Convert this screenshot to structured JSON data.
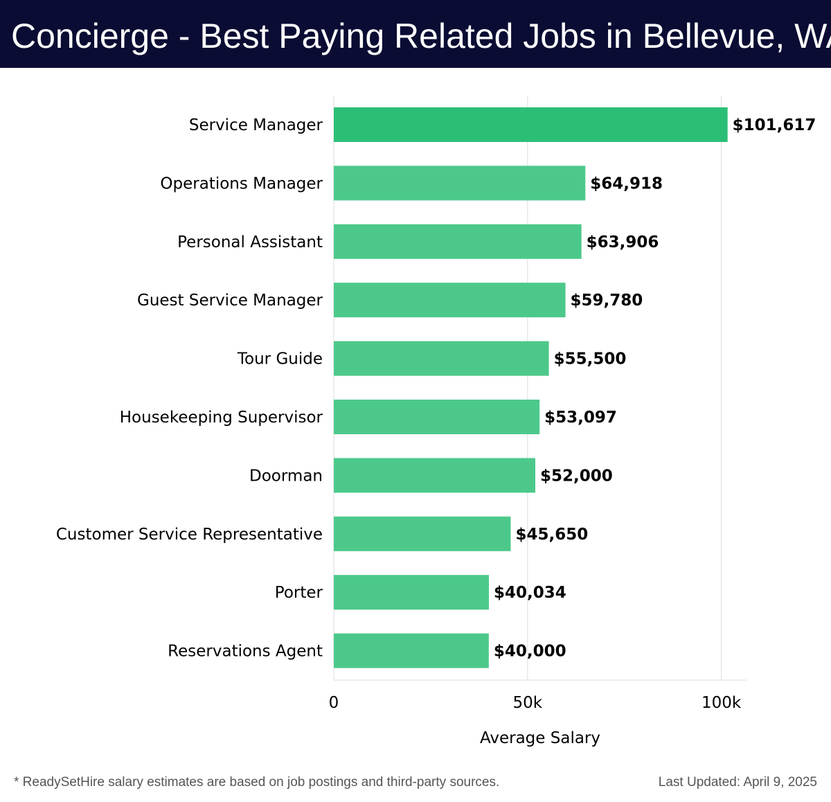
{
  "header": {
    "title": "Concierge - Best Paying Related Jobs in Bellevue, WA"
  },
  "chart_data": {
    "type": "bar",
    "orientation": "horizontal",
    "categories": [
      "Service Manager",
      "Operations Manager",
      "Personal Assistant",
      "Guest Service Manager",
      "Tour Guide",
      "Housekeeping Supervisor",
      "Doorman",
      "Customer Service Representative",
      "Porter",
      "Reservations Agent"
    ],
    "values": [
      101617,
      64918,
      63906,
      59780,
      55500,
      53097,
      52000,
      45650,
      40034,
      40000
    ],
    "value_labels": [
      "$101,617",
      "$64,918",
      "$63,906",
      "$59,780",
      "$55,500",
      "$53,097",
      "$52,000",
      "$45,650",
      "$40,034",
      "$40,000"
    ],
    "xlabel": "Average Salary",
    "ylabel": "",
    "xlim": [
      0,
      106500
    ],
    "xticks": [
      0,
      50000,
      100000
    ],
    "xtick_labels": [
      "0",
      "50k",
      "100k"
    ],
    "grid": true,
    "colors": {
      "top_bar": "#2bbf76",
      "bars": "#4cc98a",
      "text": "#000000",
      "grid": "#dddddd"
    }
  },
  "footer": {
    "note": "* ReadySetHire salary estimates are based on job postings and third-party sources.",
    "updated": "Last Updated: April 9, 2025"
  }
}
